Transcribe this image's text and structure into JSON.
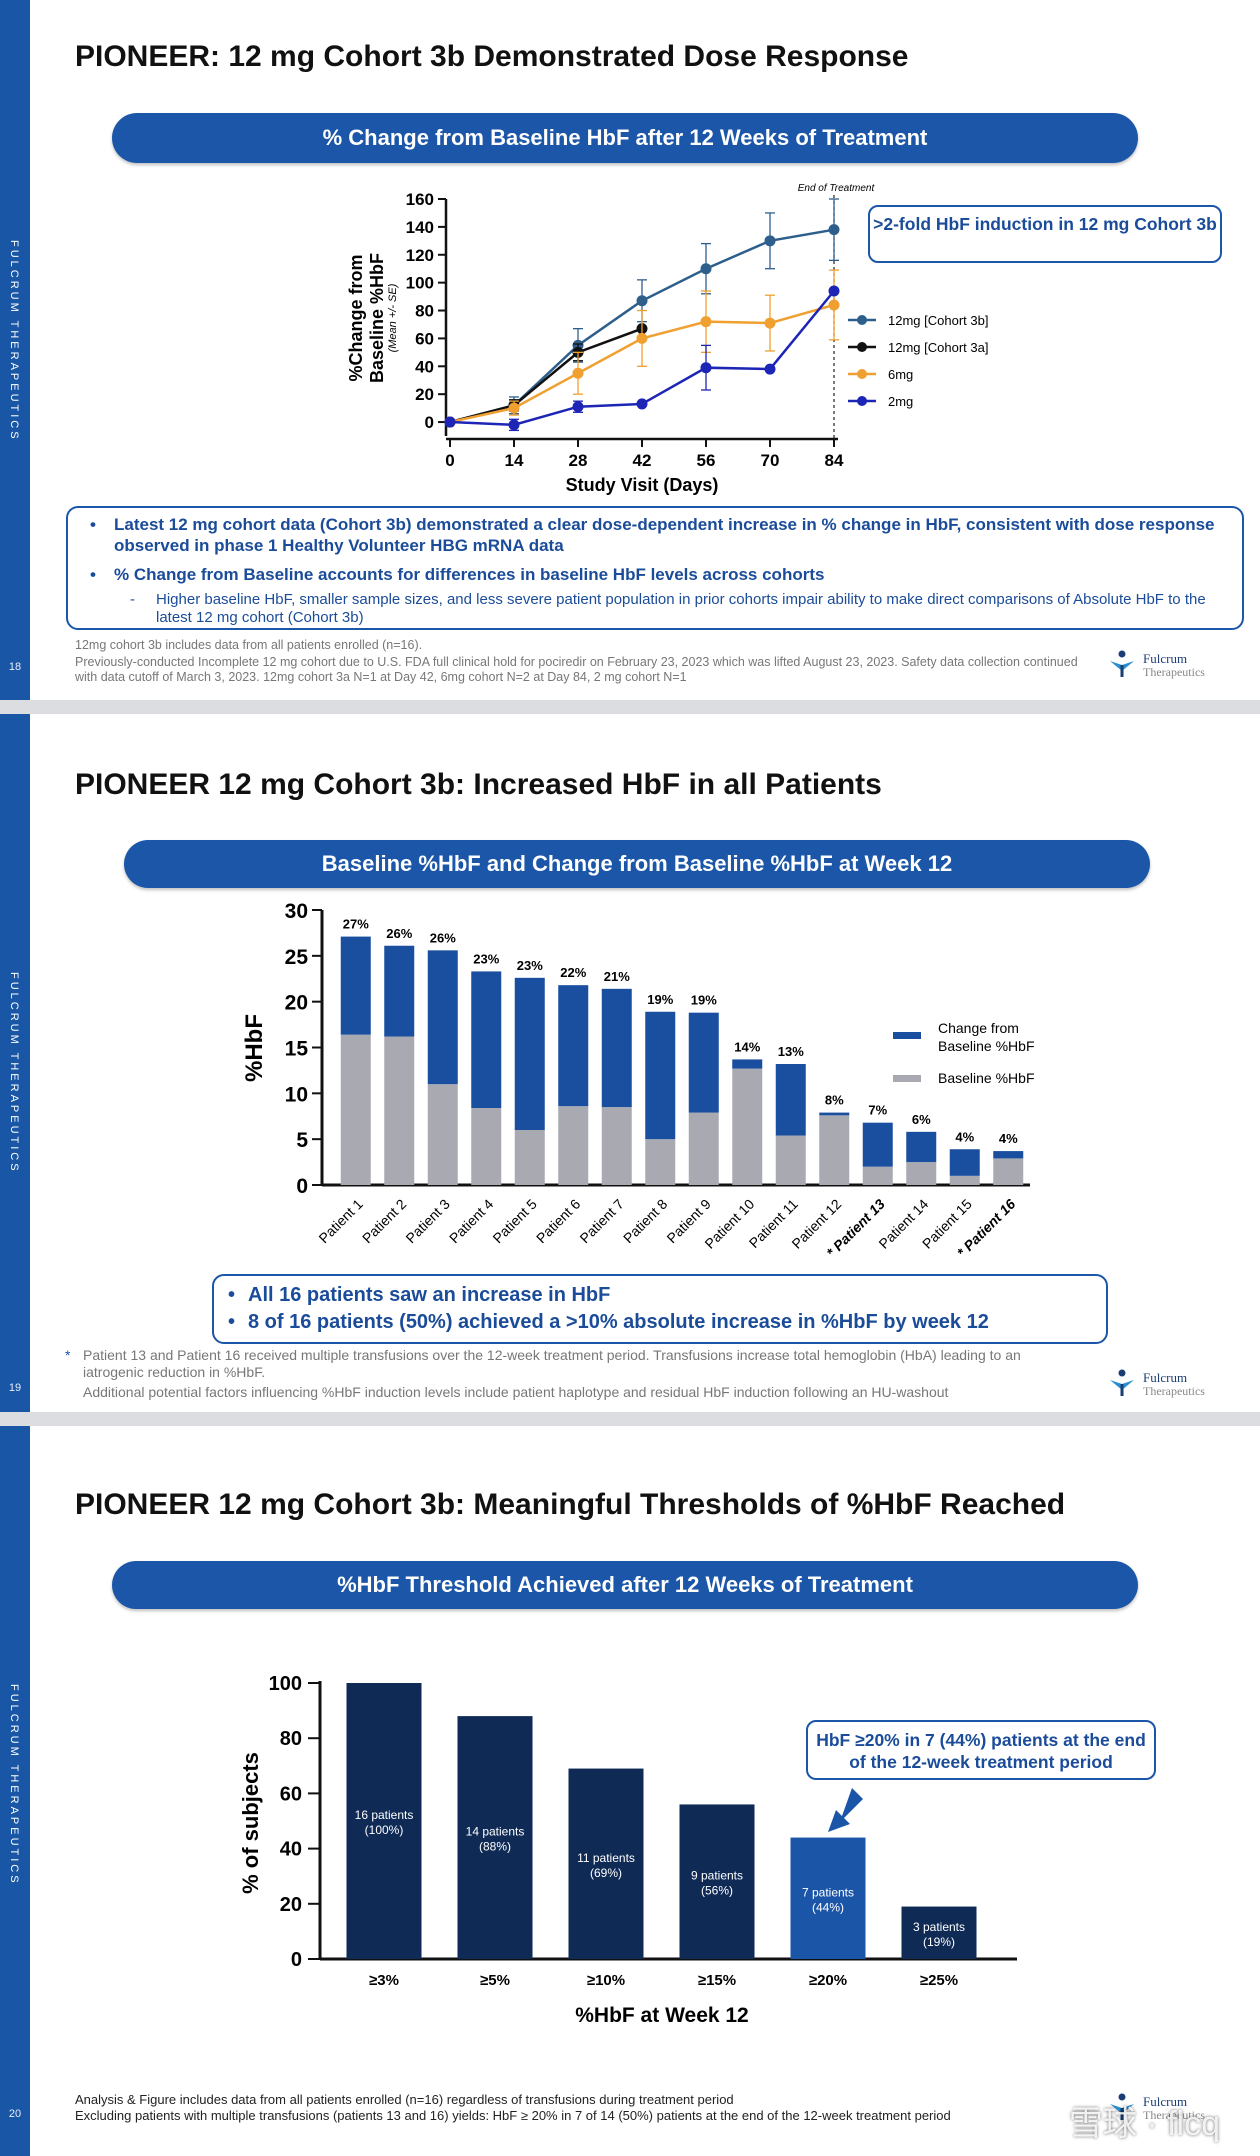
{
  "brand": "FULCRUM THERAPEUTICS",
  "logo": {
    "line1": "Fulcrum",
    "line2": "Therapeutics"
  },
  "watermark": "雪球 · flcq",
  "slide1": {
    "page": "18",
    "title": "PIONEER: 12 mg Cohort 3b Demonstrated Dose Response",
    "banner": "% Change from Baseline HbF after 12 Weeks of Treatment",
    "callout": ">2-fold HbF induction in 12 mg Cohort 3b",
    "bullets": [
      "Latest 12 mg cohort data (Cohort 3b) demonstrated a clear dose-dependent increase in % change in HbF, consistent with dose response observed in phase 1 Healthy Volunteer HBG mRNA data",
      "% Change from Baseline accounts for differences in baseline HbF levels across cohorts"
    ],
    "sub_bullet": "Higher baseline HbF,  smaller sample sizes, and less severe patient population in prior cohorts impair ability to make direct comparisons of Absolute HbF to the latest 12 mg cohort (Cohort 3b)",
    "footnotes": [
      "12mg cohort 3b includes data from all patients enrolled (n=16).",
      "Previously-conducted Incomplete 12 mg cohort due to U.S. FDA full clinical hold for pociredir on February 23, 2023 which was lifted August 23, 2023. Safety data collection continued with data cutoff of March 3, 2023. 12mg cohort 3a N=1 at Day 42, 6mg cohort N=2 at Day 84, 2 mg cohort N=1"
    ]
  },
  "slide2": {
    "page": "19",
    "title": "PIONEER 12 mg Cohort 3b: Increased HbF in all Patients",
    "banner": "Baseline %HbF and Change from Baseline %HbF at Week 12",
    "bullets": [
      "All 16 patients saw an increase in HbF",
      "8 of 16 patients (50%) achieved a >10% absolute increase in %HbF by week 12"
    ],
    "footnotes": [
      "Patient 13 and Patient 16 received multiple transfusions over the 12-week treatment period. Transfusions increase total hemoglobin (HbA) leading to an iatrogenic reduction in %HbF.",
      "Additional potential factors influencing %HbF induction levels include patient haplotype and residual HbF induction following an HU-washout"
    ],
    "footnote_marker": "*"
  },
  "slide3": {
    "page": "20",
    "title": "PIONEER 12 mg Cohort 3b: Meaningful Thresholds of %HbF Reached",
    "banner": "%HbF Threshold Achieved after 12 Weeks of Treatment",
    "callout": "HbF ≥20% in 7 (44%) patients at the end of the 12-week treatment period",
    "footnotes": [
      "Analysis & Figure includes data from all patients enrolled (n=16) regardless of transfusions during treatment period",
      "Excluding patients with multiple transfusions (patients 13 and 16) yields: HbF ≥ 20% in 7 of 14 (50%) patients at the end of the 12-week treatment period"
    ]
  },
  "chart_data": [
    {
      "type": "line",
      "title": "% Change from Baseline HbF after 12 Weeks of Treatment",
      "xlabel": "Study Visit (Days)",
      "ylabel": "%Change from Baseline %HbF",
      "ylabel_sub": "(Mean +/- SE)",
      "x_ticks": [
        0,
        14,
        28,
        42,
        56,
        70,
        84
      ],
      "y_ticks": [
        0,
        20,
        40,
        60,
        80,
        100,
        120,
        140,
        160
      ],
      "xlim": [
        0,
        84
      ],
      "ylim": [
        -10,
        160
      ],
      "annotation": "End of Treatment",
      "annotation_x": 84,
      "series": [
        {
          "name": "12mg [Cohort 3b]",
          "color": "#2e5f8c",
          "x": [
            0,
            14,
            28,
            42,
            56,
            70,
            84
          ],
          "y": [
            0,
            12,
            55,
            87,
            110,
            130,
            138
          ],
          "err": [
            0,
            6,
            12,
            15,
            18,
            20,
            22
          ]
        },
        {
          "name": "12mg [Cohort 3a]",
          "color": "#111111",
          "x": [
            0,
            14,
            28,
            42
          ],
          "y": [
            0,
            12,
            50,
            67
          ],
          "err": [
            0,
            4,
            6,
            0
          ]
        },
        {
          "name": "6mg",
          "color": "#f0a030",
          "x": [
            0,
            14,
            28,
            42,
            56,
            70,
            84
          ],
          "y": [
            0,
            10,
            35,
            60,
            72,
            71,
            84
          ],
          "err": [
            0,
            5,
            15,
            20,
            22,
            20,
            25
          ]
        },
        {
          "name": "2mg",
          "color": "#1c25b5",
          "x": [
            0,
            14,
            28,
            42,
            56,
            70,
            84
          ],
          "y": [
            0,
            -2,
            11,
            13,
            39,
            38,
            94
          ],
          "err": [
            0,
            4,
            4,
            0,
            16,
            0,
            0
          ]
        }
      ]
    },
    {
      "type": "bar",
      "stacked": true,
      "ylabel": "%HbF",
      "ylim": [
        0,
        30
      ],
      "y_ticks": [
        0,
        5,
        10,
        15,
        20,
        25,
        30
      ],
      "categories": [
        "Patient 1",
        "Patient 2",
        "Patient 3",
        "Patient 4",
        "Patient 5",
        "Patient 6",
        "Patient 7",
        "Patient 8",
        "Patient 9",
        "Patient 10",
        "Patient 11",
        "Patient 12",
        "* Patient 13",
        "Patient 14",
        "Patient 15",
        "* Patient 16"
      ],
      "emphasized": [
        "* Patient 13",
        "* Patient 16"
      ],
      "series": [
        {
          "name": "Baseline %HbF",
          "color": "#a9a9b2",
          "values": [
            16.4,
            16.2,
            11.0,
            8.4,
            6.0,
            8.6,
            8.5,
            5.0,
            7.9,
            12.7,
            5.4,
            7.6,
            2.0,
            2.5,
            1.0,
            2.9
          ]
        },
        {
          "name": "Change from Baseline %HbF",
          "color": "#1a4fa0",
          "values": [
            10.7,
            9.9,
            14.6,
            14.9,
            16.6,
            13.2,
            12.9,
            13.9,
            10.9,
            1.0,
            7.8,
            0.3,
            4.8,
            3.3,
            2.9,
            0.8
          ]
        }
      ],
      "bar_labels": [
        "27%",
        "26%",
        "26%",
        "23%",
        "23%",
        "22%",
        "21%",
        "19%",
        "19%",
        "14%",
        "13%",
        "8%",
        "7%",
        "6%",
        "4%",
        "4%"
      ]
    },
    {
      "type": "bar",
      "xlabel": "%HbF at Week 12",
      "ylabel": "% of subjects",
      "ylim": [
        0,
        100
      ],
      "y_ticks": [
        0,
        20,
        40,
        60,
        80,
        100
      ],
      "categories": [
        "≥3%",
        "≥5%",
        "≥10%",
        "≥15%",
        "≥20%",
        "≥25%"
      ],
      "values": [
        100,
        88,
        69,
        56,
        44,
        19
      ],
      "highlight": "≥20%",
      "colors": {
        "default": "#0e2a55",
        "highlight": "#1a55a8"
      },
      "bar_labels": [
        [
          "16 patients",
          "(100%)"
        ],
        [
          "14 patients",
          "(88%)"
        ],
        [
          "11 patients",
          "(69%)"
        ],
        [
          "9 patients",
          "(56%)"
        ],
        [
          "7 patients",
          "(44%)"
        ],
        [
          "3 patients",
          "(19%)"
        ]
      ]
    }
  ]
}
